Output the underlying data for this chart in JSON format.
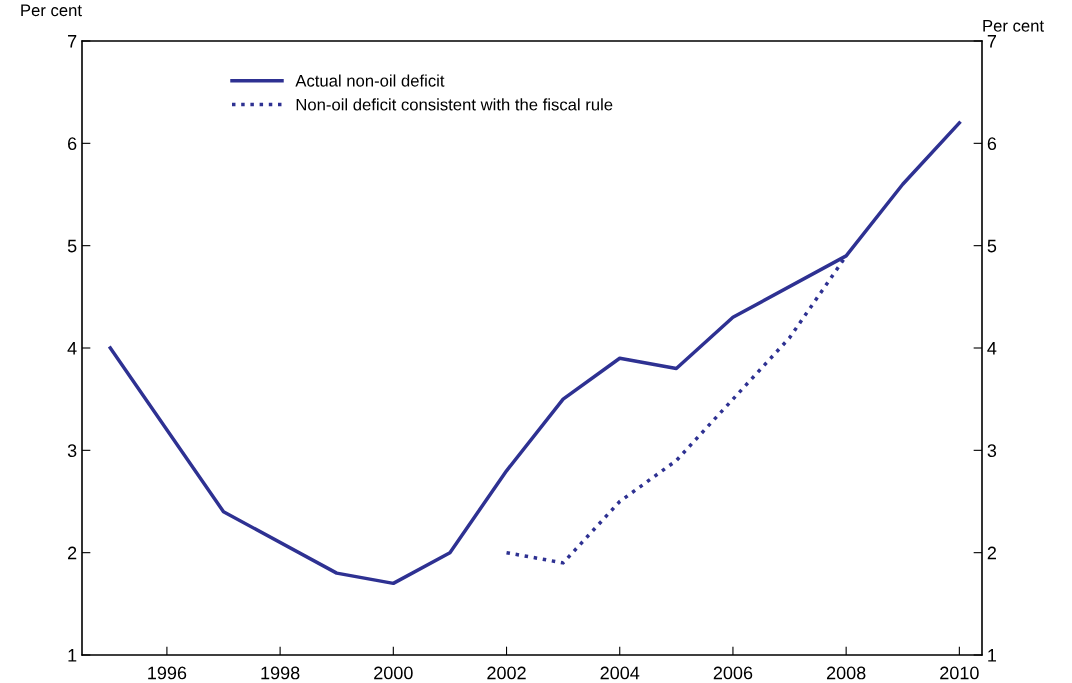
{
  "chart_data": {
    "type": "line",
    "ylabel": "Per cent",
    "y2label": "Per cent",
    "series": [
      {
        "name": "Actual non-oil deficit",
        "color": "#2e3192",
        "line_style": "solid",
        "x": [
          1995,
          1997,
          1999,
          2000,
          2001,
          2002,
          2003,
          2004,
          2005,
          2006,
          2008,
          2009,
          2010
        ],
        "values": [
          4.0,
          2.4,
          1.8,
          1.7,
          2.0,
          2.8,
          3.5,
          3.9,
          3.8,
          4.3,
          4.9,
          5.6,
          6.2
        ]
      },
      {
        "name": "Non-oil deficit consistent with the fiscal rule",
        "color": "#2e3192",
        "line_style": "dotted",
        "x": [
          2002,
          2003,
          2004,
          2005,
          2006,
          2007,
          2008
        ],
        "values": [
          2.0,
          1.9,
          2.5,
          2.9,
          3.5,
          4.1,
          4.9
        ]
      }
    ],
    "xlim": [
      1994.5,
      2010.4
    ],
    "xticks": [
      1996,
      1998,
      2000,
      2002,
      2004,
      2006,
      2008,
      2010
    ],
    "ylim": [
      1,
      7
    ],
    "yticks": [
      1,
      2,
      3,
      4,
      5,
      6,
      7
    ],
    "y2lim": [
      1,
      7
    ],
    "y2ticks": [
      1,
      2,
      3,
      4,
      5,
      6,
      7
    ],
    "grid": false,
    "legend": "top left"
  }
}
